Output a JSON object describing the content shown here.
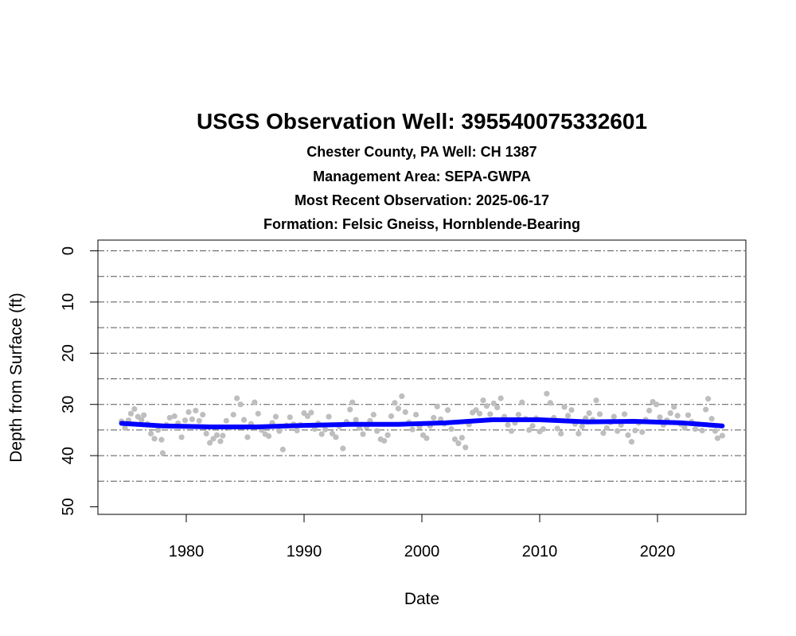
{
  "chart_data": {
    "type": "scatter",
    "title": "USGS Observation Well:  395540075332601",
    "subtitles": [
      "Chester County, PA   Well: CH 1387",
      "Management Area: SEPA-GWPA",
      "Most Recent Observation: 2025-06-17",
      "Formation: Felsic Gneiss, Hornblende-Bearing"
    ],
    "xlabel": "Date",
    "ylabel": "Depth from Surface (ft)",
    "xlim": [
      1972.5,
      2027.5
    ],
    "ylim": [
      50,
      0
    ],
    "y_axis_inverted": true,
    "x_ticks": [
      1980,
      1990,
      2000,
      2010,
      2020
    ],
    "y_ticks": [
      0,
      10,
      20,
      30,
      40,
      50
    ],
    "grid": "horizontal dash-dot lines every 5 ft",
    "colors": {
      "observations": "#bebebe",
      "trend": "#0000ff",
      "grid": "#555555"
    },
    "series": [
      {
        "kind": "observations",
        "points": [
          [
            1974.5,
            33.3
          ],
          [
            1974.8,
            34.6
          ],
          [
            1975.1,
            33.1
          ],
          [
            1975.3,
            31.8
          ],
          [
            1975.6,
            30.9
          ],
          [
            1975.9,
            32.4
          ],
          [
            1976.2,
            33.0
          ],
          [
            1976.4,
            32.1
          ],
          [
            1976.7,
            33.8
          ],
          [
            1977.0,
            35.7
          ],
          [
            1977.3,
            36.7
          ],
          [
            1977.6,
            35.0
          ],
          [
            1977.9,
            36.9
          ],
          [
            1978.0,
            39.5
          ],
          [
            1978.3,
            34.0
          ],
          [
            1978.6,
            32.6
          ],
          [
            1979.0,
            32.3
          ],
          [
            1979.3,
            33.7
          ],
          [
            1979.6,
            36.4
          ],
          [
            1979.9,
            33.1
          ],
          [
            1980.2,
            31.5
          ],
          [
            1980.5,
            32.9
          ],
          [
            1980.8,
            31.2
          ],
          [
            1981.1,
            33.2
          ],
          [
            1981.4,
            32.0
          ],
          [
            1981.7,
            35.7
          ],
          [
            1982.0,
            37.5
          ],
          [
            1982.3,
            36.7
          ],
          [
            1982.6,
            36.0
          ],
          [
            1982.9,
            37.2
          ],
          [
            1983.1,
            36.1
          ],
          [
            1983.4,
            33.2
          ],
          [
            1983.7,
            34.6
          ],
          [
            1984.0,
            32.0
          ],
          [
            1984.3,
            28.8
          ],
          [
            1984.6,
            30.0
          ],
          [
            1984.9,
            33.0
          ],
          [
            1985.2,
            36.4
          ],
          [
            1985.5,
            33.8
          ],
          [
            1985.8,
            29.6
          ],
          [
            1986.1,
            31.8
          ],
          [
            1986.4,
            35.0
          ],
          [
            1986.7,
            35.8
          ],
          [
            1987.0,
            36.2
          ],
          [
            1987.3,
            33.6
          ],
          [
            1987.6,
            32.4
          ],
          [
            1987.9,
            35.2
          ],
          [
            1988.2,
            38.8
          ],
          [
            1988.5,
            34.1
          ],
          [
            1988.8,
            32.5
          ],
          [
            1989.1,
            33.9
          ],
          [
            1989.4,
            35.1
          ],
          [
            1989.7,
            34.0
          ],
          [
            1990.0,
            31.7
          ],
          [
            1990.3,
            32.3
          ],
          [
            1990.6,
            31.6
          ],
          [
            1990.9,
            34.8
          ],
          [
            1991.2,
            33.7
          ],
          [
            1991.5,
            35.8
          ],
          [
            1991.8,
            34.9
          ],
          [
            1992.1,
            32.4
          ],
          [
            1992.4,
            35.7
          ],
          [
            1992.7,
            36.4
          ],
          [
            1993.0,
            34.3
          ],
          [
            1993.3,
            38.6
          ],
          [
            1993.6,
            33.4
          ],
          [
            1993.9,
            31.0
          ],
          [
            1994.1,
            29.6
          ],
          [
            1994.4,
            33.0
          ],
          [
            1994.7,
            34.6
          ],
          [
            1995.0,
            35.8
          ],
          [
            1995.3,
            34.4
          ],
          [
            1995.6,
            33.2
          ],
          [
            1995.9,
            32.0
          ],
          [
            1996.2,
            35.2
          ],
          [
            1996.5,
            36.8
          ],
          [
            1996.8,
            37.1
          ],
          [
            1997.1,
            36.0
          ],
          [
            1997.4,
            32.3
          ],
          [
            1997.7,
            29.7
          ],
          [
            1998.0,
            30.8
          ],
          [
            1998.3,
            28.4
          ],
          [
            1998.6,
            31.5
          ],
          [
            1998.9,
            33.5
          ],
          [
            1999.2,
            34.9
          ],
          [
            1999.5,
            32.0
          ],
          [
            1999.8,
            34.4
          ],
          [
            2000.1,
            36.0
          ],
          [
            2000.4,
            36.6
          ],
          [
            2000.7,
            34.2
          ],
          [
            2001.0,
            32.6
          ],
          [
            2001.3,
            30.4
          ],
          [
            2001.6,
            32.9
          ],
          [
            2001.9,
            33.8
          ],
          [
            2002.2,
            31.1
          ],
          [
            2002.5,
            34.8
          ],
          [
            2002.8,
            36.8
          ],
          [
            2003.1,
            37.6
          ],
          [
            2003.4,
            36.5
          ],
          [
            2003.7,
            38.4
          ],
          [
            2004.0,
            33.9
          ],
          [
            2004.3,
            31.6
          ],
          [
            2004.6,
            31.1
          ],
          [
            2004.9,
            31.8
          ],
          [
            2005.2,
            29.2
          ],
          [
            2005.5,
            30.3
          ],
          [
            2005.8,
            31.9
          ],
          [
            2006.1,
            29.8
          ],
          [
            2006.4,
            30.6
          ],
          [
            2006.7,
            28.8
          ],
          [
            2007.0,
            32.4
          ],
          [
            2007.3,
            34.0
          ],
          [
            2007.6,
            35.2
          ],
          [
            2007.9,
            33.6
          ],
          [
            2008.2,
            32.0
          ],
          [
            2008.5,
            29.6
          ],
          [
            2008.8,
            32.8
          ],
          [
            2009.1,
            35.0
          ],
          [
            2009.4,
            34.2
          ],
          [
            2009.7,
            32.7
          ],
          [
            2010.0,
            35.3
          ],
          [
            2010.3,
            34.8
          ],
          [
            2010.6,
            27.9
          ],
          [
            2010.9,
            29.7
          ],
          [
            2011.2,
            32.6
          ],
          [
            2011.5,
            34.7
          ],
          [
            2011.8,
            35.7
          ],
          [
            2012.1,
            30.5
          ],
          [
            2012.4,
            32.2
          ],
          [
            2012.7,
            31.1
          ],
          [
            2013.0,
            33.8
          ],
          [
            2013.3,
            35.7
          ],
          [
            2013.6,
            34.3
          ],
          [
            2013.9,
            32.7
          ],
          [
            2014.2,
            31.7
          ],
          [
            2014.5,
            33.0
          ],
          [
            2014.8,
            29.2
          ],
          [
            2015.1,
            31.9
          ],
          [
            2015.4,
            35.6
          ],
          [
            2015.7,
            34.6
          ],
          [
            2016.0,
            33.5
          ],
          [
            2016.3,
            32.4
          ],
          [
            2016.6,
            35.2
          ],
          [
            2016.9,
            34.0
          ],
          [
            2017.2,
            31.9
          ],
          [
            2017.5,
            36.0
          ],
          [
            2017.8,
            37.3
          ],
          [
            2018.1,
            35.1
          ],
          [
            2018.4,
            33.6
          ],
          [
            2018.7,
            35.4
          ],
          [
            2019.0,
            33.0
          ],
          [
            2019.3,
            31.2
          ],
          [
            2019.6,
            29.5
          ],
          [
            2019.9,
            30.0
          ],
          [
            2020.2,
            32.5
          ],
          [
            2020.5,
            34.0
          ],
          [
            2020.8,
            33.1
          ],
          [
            2021.1,
            31.7
          ],
          [
            2021.4,
            30.5
          ],
          [
            2021.7,
            32.2
          ],
          [
            2022.0,
            33.9
          ],
          [
            2022.3,
            34.6
          ],
          [
            2022.6,
            32.1
          ],
          [
            2022.9,
            33.4
          ],
          [
            2023.2,
            34.8
          ],
          [
            2023.5,
            33.9
          ],
          [
            2023.8,
            35.1
          ],
          [
            2024.1,
            31.0
          ],
          [
            2024.3,
            28.9
          ],
          [
            2024.6,
            32.8
          ],
          [
            2024.9,
            35.2
          ],
          [
            2025.1,
            36.6
          ],
          [
            2025.5,
            36.1
          ]
        ]
      },
      {
        "kind": "trend",
        "points": [
          [
            1974.5,
            33.7
          ],
          [
            1978,
            34.2
          ],
          [
            1982,
            34.4
          ],
          [
            1986,
            34.4
          ],
          [
            1990,
            34.1
          ],
          [
            1994,
            33.9
          ],
          [
            1998,
            33.9
          ],
          [
            2002,
            33.6
          ],
          [
            2006,
            33.0
          ],
          [
            2010,
            33.0
          ],
          [
            2014,
            33.4
          ],
          [
            2018,
            33.3
          ],
          [
            2022,
            33.6
          ],
          [
            2025.5,
            34.2
          ]
        ]
      }
    ]
  }
}
